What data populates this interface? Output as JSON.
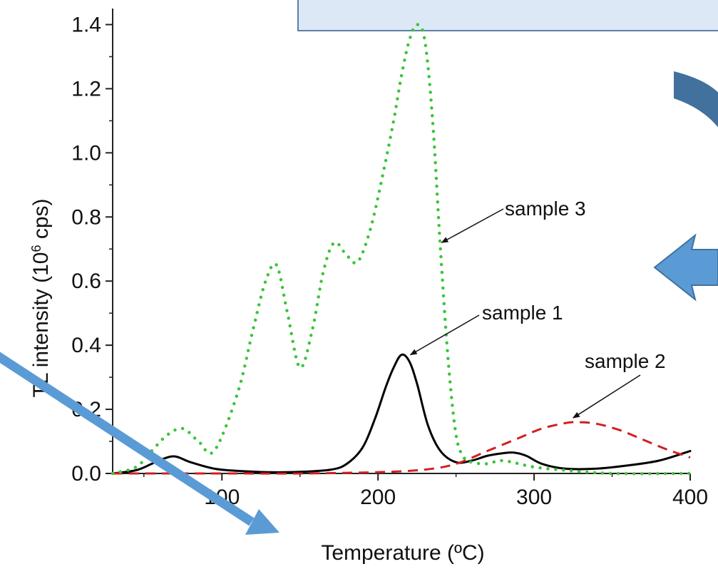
{
  "chart_data": {
    "type": "line",
    "xlabel": "Temperature (ºC)",
    "ylabel_prefix": "TL intensity (10",
    "ylabel_sup": "6",
    "ylabel_suffix": " cps)",
    "xlim": [
      30,
      400
    ],
    "ylim": [
      0,
      1.45
    ],
    "x_ticks": [
      100,
      200,
      300,
      400
    ],
    "x_tick_labels": [
      "100",
      "200",
      "300",
      "400"
    ],
    "y_ticks": [
      0.0,
      0.2,
      0.4,
      0.6,
      0.8,
      1.0,
      1.2,
      1.4
    ],
    "y_tick_labels": [
      "0.0",
      "0.2",
      "0.4",
      "0.6",
      "0.8",
      "1.0",
      "1.2",
      "1.4"
    ],
    "series": [
      {
        "name": "sample 1",
        "color": "#000000",
        "style": "solid",
        "x": [
          30,
          45,
          55,
          62,
          70,
          80,
          95,
          110,
          130,
          150,
          170,
          180,
          190,
          198,
          205,
          210,
          215,
          220,
          225,
          232,
          240,
          250,
          260,
          270,
          280,
          287,
          295,
          305,
          320,
          340,
          360,
          380,
          400
        ],
        "y": [
          0.0,
          0.01,
          0.03,
          0.045,
          0.053,
          0.035,
          0.015,
          0.008,
          0.004,
          0.005,
          0.012,
          0.03,
          0.08,
          0.17,
          0.27,
          0.33,
          0.37,
          0.35,
          0.28,
          0.15,
          0.07,
          0.035,
          0.04,
          0.055,
          0.063,
          0.065,
          0.055,
          0.03,
          0.015,
          0.015,
          0.025,
          0.04,
          0.07
        ]
      },
      {
        "name": "sample 2",
        "color": "#d02020",
        "style": "dashed",
        "x": [
          30,
          100,
          150,
          200,
          230,
          250,
          270,
          290,
          305,
          320,
          328,
          340,
          355,
          370,
          385,
          400
        ],
        "y": [
          0.0,
          0.0,
          0.0,
          0.004,
          0.012,
          0.03,
          0.07,
          0.11,
          0.14,
          0.157,
          0.16,
          0.155,
          0.135,
          0.105,
          0.075,
          0.05
        ]
      },
      {
        "name": "sample 3",
        "color": "#3ac43a",
        "style": "dotted",
        "x": [
          30,
          45,
          55,
          65,
          75,
          85,
          95,
          110,
          120,
          128,
          135,
          142,
          150,
          158,
          165,
          172,
          180,
          187,
          195,
          203,
          210,
          215,
          220,
          225,
          230,
          235,
          240,
          245,
          250,
          255,
          260,
          270,
          280,
          300,
          320,
          350,
          400
        ],
        "y": [
          0.0,
          0.02,
          0.07,
          0.12,
          0.14,
          0.1,
          0.07,
          0.25,
          0.45,
          0.6,
          0.65,
          0.5,
          0.33,
          0.45,
          0.63,
          0.72,
          0.68,
          0.66,
          0.76,
          0.93,
          1.1,
          1.24,
          1.35,
          1.4,
          1.35,
          1.1,
          0.7,
          0.35,
          0.12,
          0.05,
          0.035,
          0.03,
          0.04,
          0.02,
          0.01,
          0.0,
          0.0
        ]
      }
    ],
    "annotations": [
      {
        "text": "sample 3",
        "series": "sample 3",
        "point": [
          238,
          0.72
        ]
      },
      {
        "text": "sample 1",
        "series": "sample 1",
        "point": [
          218,
          0.37
        ]
      },
      {
        "text": "sample 2",
        "series": "sample 2",
        "point": [
          325,
          0.16
        ]
      }
    ]
  },
  "overlay": {
    "banner_fill": "#dce8f5",
    "banner_stroke": "#5b7fa8",
    "arrow_light": "#5b9bd5",
    "arrow_dark": "#41719c"
  }
}
